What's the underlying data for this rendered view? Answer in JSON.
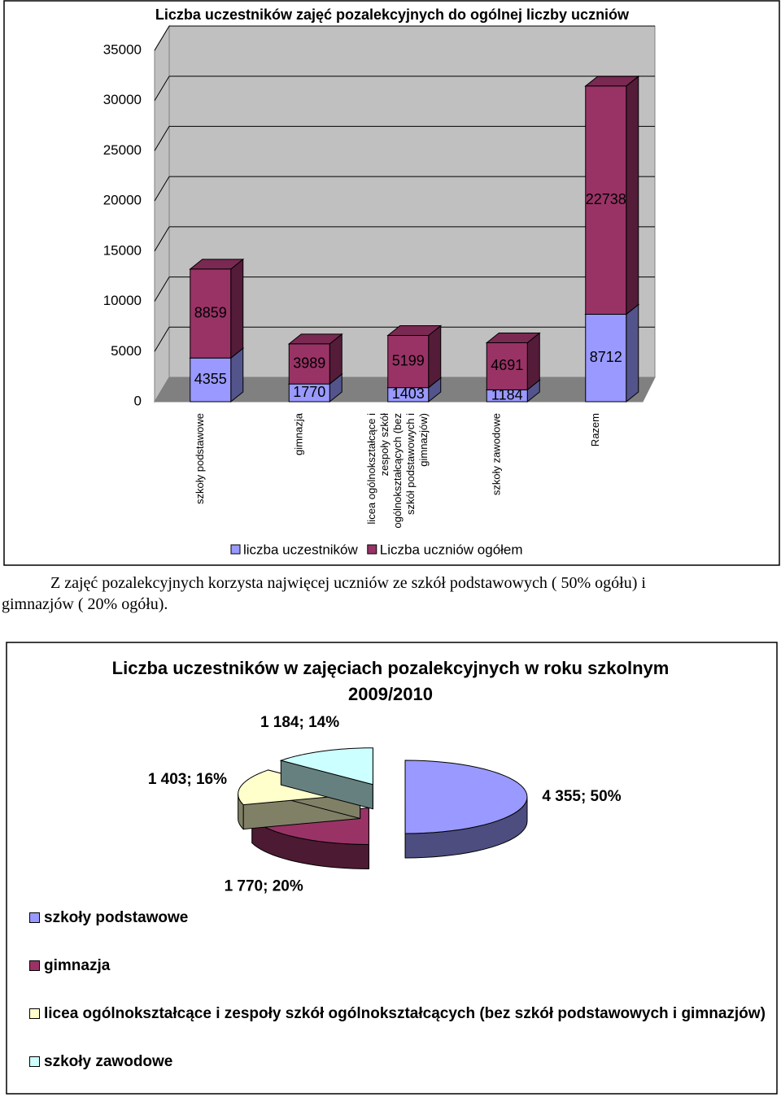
{
  "chart_data": [
    {
      "type": "bar3d-stacked",
      "title": "Liczba uczestników zajęć pozalekcyjnych do ogólnej liczby uczniów",
      "categories": [
        "szkoły podstawowe",
        "gimnazja",
        "licea ogólnokształcące i zespoły szkół ogólnokształcących (bez szkół podstawowych i gimnazjów)",
        "szkoły zawodowe",
        "Razem"
      ],
      "series": [
        {
          "name": "liczba uczestników",
          "color": "#9999ff",
          "values": [
            4355,
            1770,
            1403,
            1184,
            8712
          ]
        },
        {
          "name": "Liczba uczniów ogółem",
          "color": "#993366",
          "values": [
            8859,
            3989,
            5199,
            4691,
            22738
          ]
        }
      ],
      "ylim": [
        0,
        35000
      ],
      "yticks": [
        0,
        5000,
        10000,
        15000,
        20000,
        25000,
        30000,
        35000
      ],
      "grid": true
    },
    {
      "type": "pie3d",
      "title": "Liczba uczestników w zajęciach pozalekcyjnych w roku szkolnym 2009/2010",
      "categories": [
        "szkoły podstawowe",
        "gimnazja",
        "licea ogólnokształcące i zespoły szkół ogólnokształcących  (bez szkół podstawowych i gimnazjów)",
        "szkoły zawodowe"
      ],
      "values": [
        4355,
        1770,
        1403,
        1184
      ],
      "value_labels": [
        "4 355; 50%",
        "1 770; 20%",
        "1 403; 16%",
        "1 184; 14%"
      ],
      "colors": [
        "#9999ff",
        "#993366",
        "#ffffcc",
        "#ccffff"
      ]
    }
  ],
  "text": "Z zajęć pozalekcyjnych korzysta najwięcej uczniów ze szkół podstawowych ( 50% ogółu) i gimnazjów ( 20% ogółu)."
}
